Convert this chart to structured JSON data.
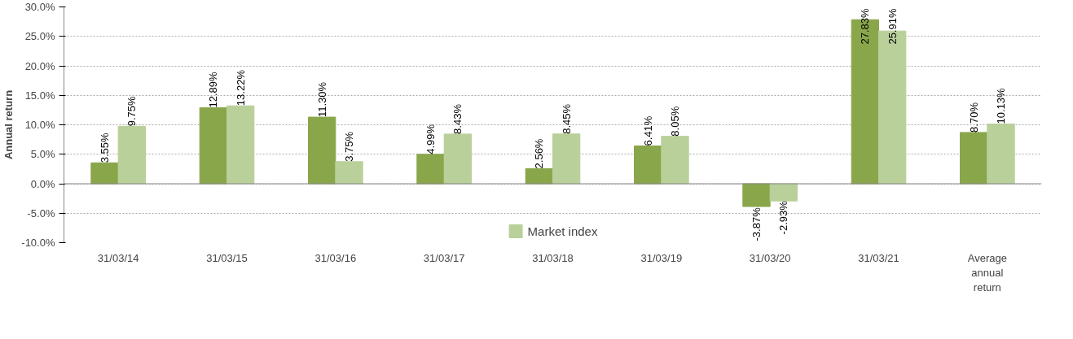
{
  "chart_data": {
    "type": "bar",
    "ylabel": "Annual return",
    "categories": [
      "31/03/14",
      "31/03/15",
      "31/03/16",
      "31/03/17",
      "31/03/18",
      "31/03/19",
      "31/03/20",
      "31/03/21",
      "Average\nannual\nreturn"
    ],
    "series": [
      {
        "color": "#8aa64b",
        "values": [
          3.55,
          12.89,
          11.3,
          4.99,
          2.56,
          6.41,
          -3.87,
          27.83,
          8.7
        ],
        "value_labels": [
          "3.55%",
          "12.89%",
          "11.30%",
          "4.99%",
          "2.56%",
          "6.41%",
          "-3.87%",
          "27.83%",
          "8.70%"
        ]
      },
      {
        "name": "Market index",
        "color": "#b9d09a",
        "values": [
          9.75,
          13.22,
          3.75,
          8.43,
          8.45,
          8.05,
          -2.93,
          25.91,
          10.13
        ],
        "value_labels": [
          "9.75%",
          "13.22%",
          "3.75%",
          "8.43%",
          "8.45%",
          "8.05%",
          "-2.93%",
          "25.91%",
          "10.13%"
        ]
      }
    ],
    "ylim": [
      -10,
      30
    ],
    "yticks": [
      {
        "value": -10,
        "label": "-10.0%"
      },
      {
        "value": -5,
        "label": "-5.0%"
      },
      {
        "value": 0,
        "label": "0.0%"
      },
      {
        "value": 5,
        "label": "5.0%"
      },
      {
        "value": 10,
        "label": "10.0%"
      },
      {
        "value": 15,
        "label": "15.0%"
      },
      {
        "value": 20,
        "label": "20.0%"
      },
      {
        "value": 25,
        "label": "25.0%"
      },
      {
        "value": 30,
        "label": "30.0%"
      }
    ],
    "grid": "y",
    "legend": "bottom"
  }
}
